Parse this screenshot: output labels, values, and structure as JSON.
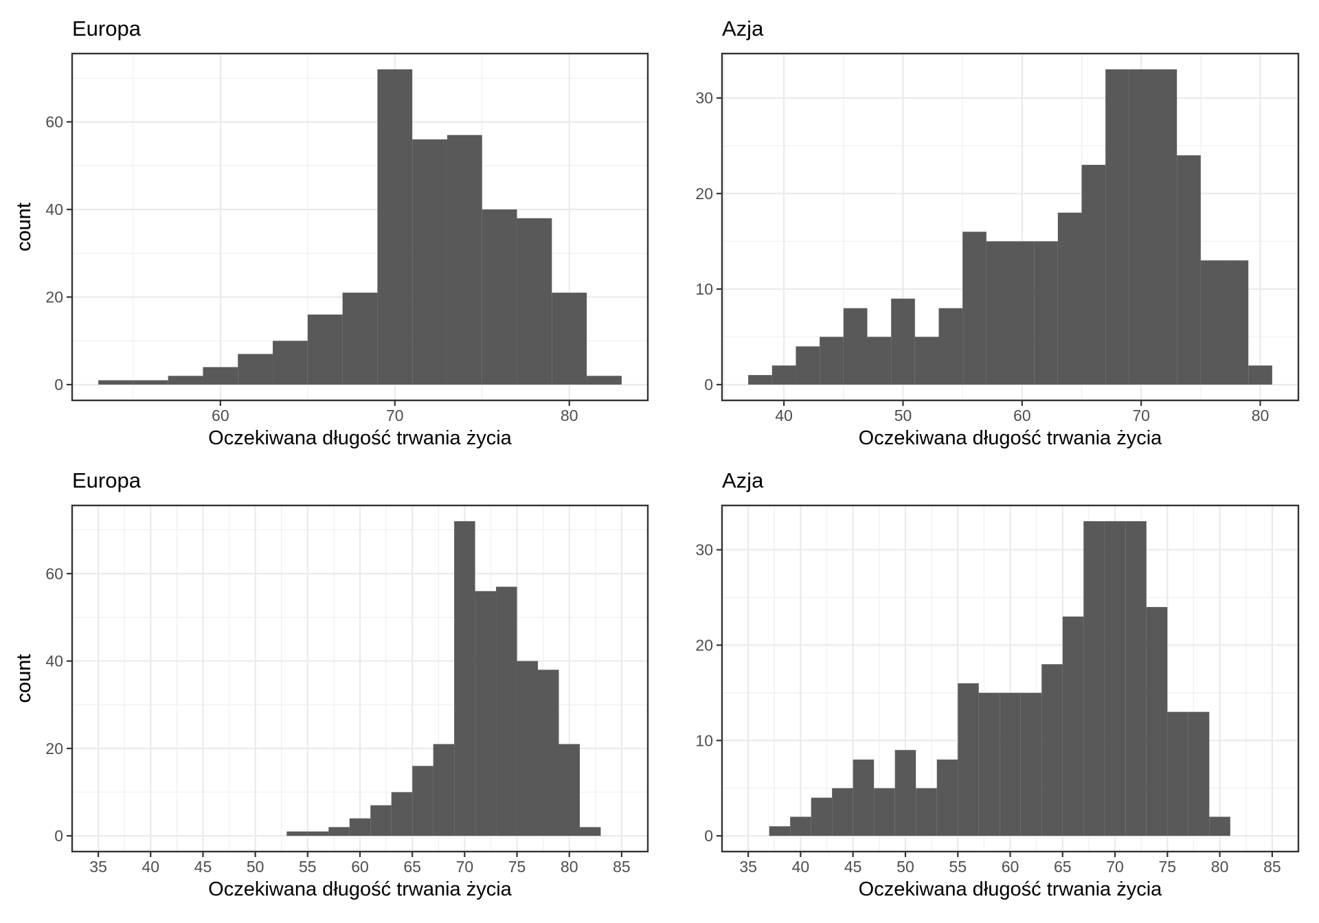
{
  "figure": {
    "background": "#FFFFFF",
    "bar_fill": "#595959",
    "panel_border": "#333333",
    "grid_major_color": "#EAEAEA",
    "grid_minor_color": "#F1F1F1",
    "tick_color": "#333333",
    "tick_label_color": "#4D4D4D",
    "text_color": "#000000"
  },
  "chart_data": [
    {
      "id": "europa-free",
      "type": "bar",
      "subtype": "histogram",
      "title": "Europa",
      "xlabel": "Oczekiwana długość trwania życia",
      "ylabel": "count",
      "bin_start": 53,
      "bin_width": 2,
      "values": [
        1,
        1,
        2,
        4,
        7,
        10,
        16,
        21,
        72,
        56,
        57,
        40,
        38,
        21,
        2
      ],
      "x_ticks": [
        60,
        70,
        80
      ],
      "y_ticks": [
        0,
        20,
        40,
        60
      ],
      "xlim": [
        51.5,
        84.5
      ],
      "ylim": [
        -3.6,
        75.6
      ],
      "grid": "on",
      "legend": "none"
    },
    {
      "id": "azja-free",
      "type": "bar",
      "subtype": "histogram",
      "title": "Azja",
      "xlabel": "Oczekiwana długość trwania życia",
      "ylabel": "count",
      "bin_start": 37,
      "bin_width": 2,
      "values": [
        1,
        2,
        4,
        5,
        8,
        5,
        9,
        5,
        8,
        16,
        15,
        15,
        15,
        18,
        23,
        33,
        33,
        33,
        24,
        13,
        13,
        2
      ],
      "x_ticks": [
        40,
        50,
        60,
        70,
        80
      ],
      "y_ticks": [
        0,
        10,
        20,
        30
      ],
      "xlim": [
        34.8,
        83.2
      ],
      "ylim": [
        -1.65,
        34.65
      ],
      "grid": "on",
      "legend": "none"
    },
    {
      "id": "europa-fixed",
      "type": "bar",
      "subtype": "histogram",
      "title": "Europa",
      "xlabel": "Oczekiwana długość trwania życia",
      "ylabel": "count",
      "bin_start": 53,
      "bin_width": 2,
      "values": [
        1,
        1,
        2,
        4,
        7,
        10,
        16,
        21,
        72,
        56,
        57,
        40,
        38,
        21,
        2
      ],
      "x_ticks": [
        35,
        40,
        45,
        50,
        55,
        60,
        65,
        70,
        75,
        80,
        85
      ],
      "y_ticks": [
        0,
        20,
        40,
        60
      ],
      "xlim": [
        32.5,
        87.5
      ],
      "ylim": [
        -3.6,
        75.6
      ],
      "grid": "on",
      "legend": "none"
    },
    {
      "id": "azja-fixed",
      "type": "bar",
      "subtype": "histogram",
      "title": "Azja",
      "xlabel": "Oczekiwana długość trwania życia",
      "ylabel": "count",
      "bin_start": 37,
      "bin_width": 2,
      "values": [
        1,
        2,
        4,
        5,
        8,
        5,
        9,
        5,
        8,
        16,
        15,
        15,
        15,
        18,
        23,
        33,
        33,
        33,
        24,
        13,
        13,
        2
      ],
      "x_ticks": [
        35,
        40,
        45,
        50,
        55,
        60,
        65,
        70,
        75,
        80,
        85
      ],
      "y_ticks": [
        0,
        10,
        20,
        30
      ],
      "xlim": [
        32.5,
        87.5
      ],
      "ylim": [
        -1.65,
        34.65
      ],
      "grid": "on",
      "legend": "none"
    }
  ]
}
